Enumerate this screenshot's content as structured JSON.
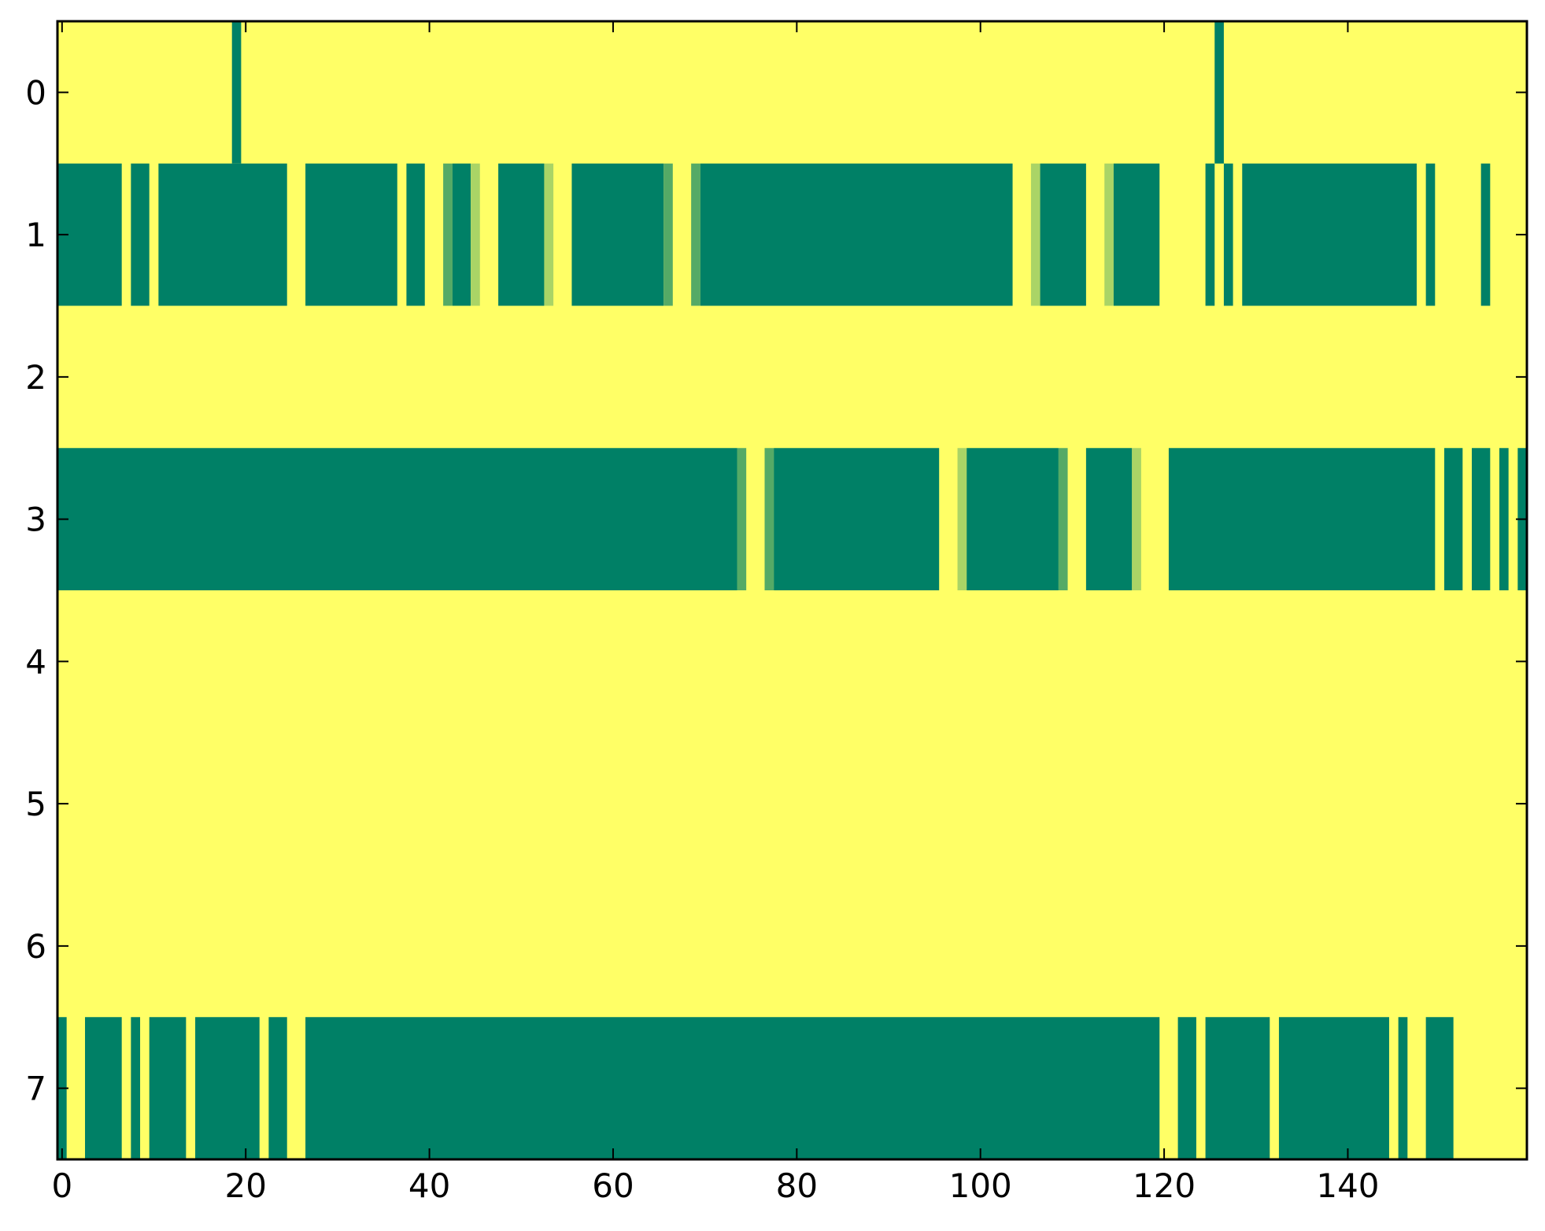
{
  "chart_data": {
    "type": "heatmap",
    "title": "",
    "xlabel": "",
    "ylabel": "",
    "n_cols": 160,
    "xlim": [
      -0.5,
      159.5
    ],
    "ylim": [
      7.5,
      -0.5
    ],
    "xticks": [
      0,
      20,
      40,
      60,
      80,
      100,
      120,
      140
    ],
    "xtick_labels": [
      "0",
      "20",
      "40",
      "60",
      "80",
      "100",
      "120",
      "140"
    ],
    "yticks": [
      0,
      1,
      2,
      3,
      4,
      5,
      6,
      7
    ],
    "ytick_labels": [
      "0",
      "1",
      "2",
      "3",
      "4",
      "5",
      "6",
      "7"
    ],
    "grid": false,
    "colormap": "summer_r",
    "colors": {
      "background": "#ffff66",
      "high": "#008066",
      "mid": "#55aa66",
      "low": "#aad466"
    },
    "cells_note": "each row lists runs of non-background cells as [start_col, end_col, level]",
    "rows": [
      {
        "y": 0,
        "segments": [
          [
            19,
            19,
            "high"
          ],
          [
            126,
            126,
            "high"
          ]
        ]
      },
      {
        "y": 1,
        "segments": [
          [
            0,
            6,
            "high"
          ],
          [
            8,
            9,
            "high"
          ],
          [
            11,
            24,
            "high"
          ],
          [
            27,
            36,
            "high"
          ],
          [
            38,
            39,
            "high"
          ],
          [
            42,
            42,
            "mid"
          ],
          [
            43,
            44,
            "high"
          ],
          [
            45,
            45,
            "low"
          ],
          [
            48,
            52,
            "high"
          ],
          [
            53,
            53,
            "low"
          ],
          [
            56,
            65,
            "high"
          ],
          [
            66,
            66,
            "mid"
          ],
          [
            69,
            69,
            "mid"
          ],
          [
            70,
            103,
            "high"
          ],
          [
            106,
            106,
            "low"
          ],
          [
            107,
            111,
            "high"
          ],
          [
            114,
            114,
            "low"
          ],
          [
            115,
            119,
            "high"
          ],
          [
            125,
            125,
            "high"
          ],
          [
            127,
            127,
            "high"
          ],
          [
            129,
            147,
            "high"
          ],
          [
            149,
            149,
            "high"
          ],
          [
            155,
            155,
            "high"
          ]
        ]
      },
      {
        "y": 2,
        "segments": []
      },
      {
        "y": 3,
        "segments": [
          [
            0,
            73,
            "high"
          ],
          [
            74,
            74,
            "mid"
          ],
          [
            77,
            77,
            "mid"
          ],
          [
            78,
            95,
            "high"
          ],
          [
            98,
            98,
            "low"
          ],
          [
            99,
            108,
            "high"
          ],
          [
            109,
            109,
            "mid"
          ],
          [
            112,
            116,
            "high"
          ],
          [
            117,
            117,
            "low"
          ],
          [
            121,
            149,
            "high"
          ],
          [
            151,
            152,
            "high"
          ],
          [
            154,
            155,
            "high"
          ],
          [
            157,
            157,
            "high"
          ],
          [
            159,
            159,
            "high"
          ]
        ]
      },
      {
        "y": 4,
        "segments": []
      },
      {
        "y": 5,
        "segments": []
      },
      {
        "y": 6,
        "segments": []
      },
      {
        "y": 7,
        "segments": [
          [
            0,
            0,
            "high"
          ],
          [
            3,
            6,
            "high"
          ],
          [
            8,
            8,
            "high"
          ],
          [
            10,
            13,
            "high"
          ],
          [
            15,
            21,
            "high"
          ],
          [
            23,
            24,
            "high"
          ],
          [
            27,
            119,
            "high"
          ],
          [
            122,
            123,
            "high"
          ],
          [
            125,
            131,
            "high"
          ],
          [
            133,
            144,
            "high"
          ],
          [
            146,
            146,
            "high"
          ],
          [
            149,
            151,
            "high"
          ]
        ]
      }
    ]
  }
}
